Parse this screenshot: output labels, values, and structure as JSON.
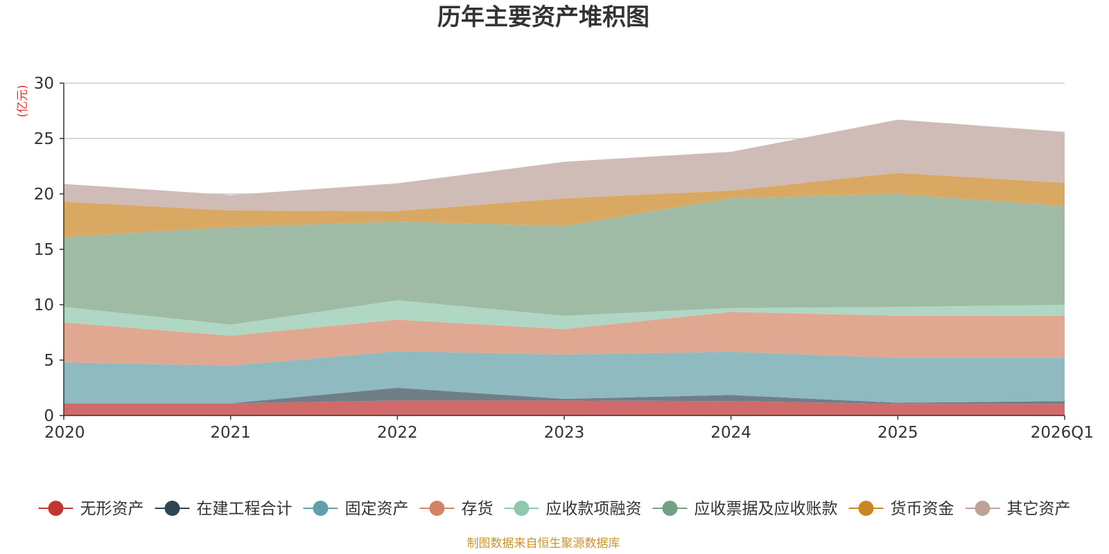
{
  "chart_data": {
    "type": "area",
    "stacked": true,
    "title": "历年主要资产堆积图",
    "unit_label": "(亿元)",
    "source_note": "制图数据来自恒生聚源数据库",
    "categories": [
      "2020",
      "2021",
      "2022",
      "2023",
      "2024",
      "2025",
      "2026Q1"
    ],
    "ylim": [
      0,
      30
    ],
    "yticks": [
      0,
      5,
      10,
      15,
      20,
      25,
      30
    ],
    "grid": true,
    "legend_position": "bottom",
    "series": [
      {
        "name": "无形资产",
        "color": "#d16b6b",
        "marker": "#c23531",
        "values": [
          1.1,
          1.1,
          1.35,
          1.35,
          1.3,
          1.05,
          1.05
        ]
      },
      {
        "name": "在建工程合计",
        "color": "#6e7f88",
        "marker": "#2f4554",
        "values": [
          0.0,
          0.0,
          1.15,
          0.15,
          0.55,
          0.1,
          0.25
        ]
      },
      {
        "name": "固定资产",
        "color": "#8fbac0",
        "marker": "#61a0a8",
        "values": [
          3.7,
          3.4,
          3.3,
          4.0,
          3.9,
          4.05,
          3.9
        ]
      },
      {
        "name": "存货",
        "color": "#e0a791",
        "marker": "#d48265",
        "values": [
          3.6,
          2.7,
          2.85,
          2.3,
          3.6,
          3.8,
          3.8
        ]
      },
      {
        "name": "应收款项融资",
        "color": "#b0d6c4",
        "marker": "#91c7ae",
        "values": [
          1.4,
          1.0,
          1.75,
          1.2,
          0.35,
          0.8,
          1.0
        ]
      },
      {
        "name": "应收票据及应收账款",
        "color": "#9fbaa5",
        "marker": "#749f83",
        "values": [
          6.3,
          8.8,
          7.1,
          8.1,
          9.9,
          10.2,
          8.9
        ]
      },
      {
        "name": "货币资金",
        "color": "#d9a862",
        "marker": "#ca8622",
        "values": [
          3.2,
          1.5,
          0.95,
          2.5,
          0.7,
          1.9,
          2.1
        ]
      },
      {
        "name": "其它资产",
        "color": "#d0bcb6",
        "marker": "#bda29a",
        "values": [
          1.6,
          1.4,
          2.5,
          3.3,
          3.5,
          4.8,
          4.6
        ]
      }
    ]
  }
}
